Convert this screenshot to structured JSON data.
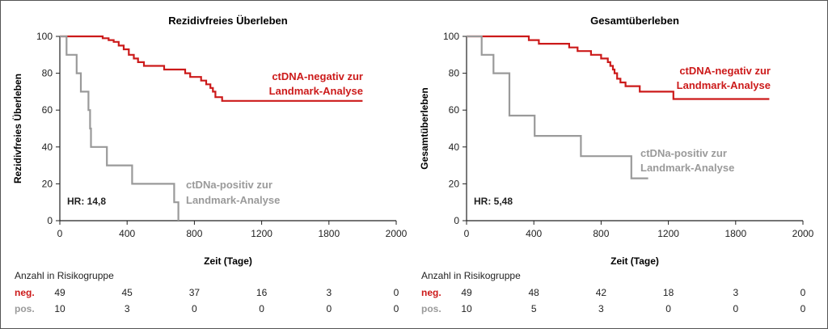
{
  "colors": {
    "negative": "#cc1a1a",
    "positive": "#9a9a9a",
    "axis": "#222222"
  },
  "chart_data": [
    {
      "type": "line",
      "title": "Rezidivfreies Überleben",
      "xlabel": "Zeit (Tage)",
      "ylabel": "Rezidivfreies Überleben",
      "xlim": [
        0,
        2000
      ],
      "ylim": [
        0,
        100
      ],
      "x_ticks": [
        "0",
        "400",
        "800",
        "1200",
        "1800",
        "2000"
      ],
      "y_ticks": [
        "0",
        "20",
        "40",
        "60",
        "80",
        "100"
      ],
      "hr_label": "HR: 14,8",
      "series": [
        {
          "name": "ctDNA-negativ zur Landmark-Analyse",
          "label_lines": [
            "ctDNA-negativ zur",
            "Landmark-Analyse"
          ],
          "color_key": "negative",
          "steps": [
            [
              0,
              100
            ],
            [
              255,
              100
            ],
            [
              255,
              99
            ],
            [
              290,
              99
            ],
            [
              290,
              98
            ],
            [
              320,
              98
            ],
            [
              320,
              97
            ],
            [
              350,
              97
            ],
            [
              350,
              95
            ],
            [
              380,
              95
            ],
            [
              380,
              93
            ],
            [
              410,
              93
            ],
            [
              410,
              90
            ],
            [
              440,
              90
            ],
            [
              440,
              88
            ],
            [
              465,
              88
            ],
            [
              465,
              86
            ],
            [
              500,
              86
            ],
            [
              500,
              84
            ],
            [
              620,
              84
            ],
            [
              620,
              82
            ],
            [
              745,
              82
            ],
            [
              745,
              80
            ],
            [
              775,
              80
            ],
            [
              775,
              78
            ],
            [
              840,
              78
            ],
            [
              840,
              76
            ],
            [
              870,
              76
            ],
            [
              870,
              74
            ],
            [
              895,
              74
            ],
            [
              895,
              72
            ],
            [
              910,
              72
            ],
            [
              910,
              70
            ],
            [
              925,
              70
            ],
            [
              925,
              67
            ],
            [
              965,
              67
            ],
            [
              965,
              65
            ],
            [
              1800,
              65
            ]
          ]
        },
        {
          "name": "ctDNa-positiv zur Landmark-Analyse",
          "label_lines": [
            "ctDNa-positiv zur",
            "Landmark-Analyse"
          ],
          "color_key": "positive",
          "steps": [
            [
              0,
              100
            ],
            [
              40,
              100
            ],
            [
              40,
              90
            ],
            [
              100,
              90
            ],
            [
              100,
              80
            ],
            [
              125,
              80
            ],
            [
              125,
              70
            ],
            [
              170,
              70
            ],
            [
              170,
              60
            ],
            [
              180,
              60
            ],
            [
              180,
              50
            ],
            [
              185,
              50
            ],
            [
              185,
              40
            ],
            [
              280,
              40
            ],
            [
              280,
              30
            ],
            [
              430,
              30
            ],
            [
              430,
              20
            ],
            [
              680,
              20
            ],
            [
              680,
              10
            ],
            [
              705,
              10
            ],
            [
              705,
              0
            ]
          ]
        }
      ],
      "risk_table": {
        "title": "Anzahl in Risikogruppe",
        "times": [
          0,
          400,
          800,
          1200,
          1600,
          2000
        ],
        "neg_label": "neg.",
        "pos_label": "pos.",
        "neg": [
          "49",
          "45",
          "37",
          "16",
          "3",
          "0"
        ],
        "pos": [
          "10",
          "3",
          "0",
          "0",
          "0",
          "0"
        ]
      }
    },
    {
      "type": "line",
      "title": "Gesamtüberleben",
      "xlabel": "Zeit (Tage)",
      "ylabel": "Gesamtüberleben",
      "xlim": [
        0,
        2000
      ],
      "ylim": [
        0,
        100
      ],
      "x_ticks": [
        "0",
        "400",
        "800",
        "1200",
        "1800",
        "2000"
      ],
      "y_ticks": [
        "0",
        "20",
        "40",
        "60",
        "80",
        "100"
      ],
      "hr_label": "HR: 5,48",
      "series": [
        {
          "name": "ctDNA-negativ zur Landmark-Analyse",
          "label_lines": [
            "ctDNA-negativ zur",
            "Landmark-Analyse"
          ],
          "color_key": "negative",
          "steps": [
            [
              0,
              100
            ],
            [
              370,
              100
            ],
            [
              370,
              98
            ],
            [
              430,
              98
            ],
            [
              430,
              96
            ],
            [
              610,
              96
            ],
            [
              610,
              94
            ],
            [
              660,
              94
            ],
            [
              660,
              92
            ],
            [
              740,
              92
            ],
            [
              740,
              90
            ],
            [
              800,
              90
            ],
            [
              800,
              88
            ],
            [
              840,
              88
            ],
            [
              840,
              86
            ],
            [
              855,
              86
            ],
            [
              855,
              84
            ],
            [
              870,
              84
            ],
            [
              870,
              82
            ],
            [
              880,
              82
            ],
            [
              880,
              80
            ],
            [
              895,
              80
            ],
            [
              895,
              77
            ],
            [
              915,
              77
            ],
            [
              915,
              75
            ],
            [
              945,
              75
            ],
            [
              945,
              73
            ],
            [
              1030,
              73
            ],
            [
              1030,
              70
            ],
            [
              1230,
              70
            ],
            [
              1230,
              66
            ],
            [
              1800,
              66
            ]
          ]
        },
        {
          "name": "ctDNa-positiv zur Landmark-Analyse",
          "label_lines": [
            "ctDNa-positiv zur",
            "Landmark-Analyse"
          ],
          "color_key": "positive",
          "steps": [
            [
              0,
              100
            ],
            [
              90,
              100
            ],
            [
              90,
              90
            ],
            [
              160,
              90
            ],
            [
              160,
              80
            ],
            [
              255,
              80
            ],
            [
              255,
              57
            ],
            [
              405,
              57
            ],
            [
              405,
              46
            ],
            [
              680,
              46
            ],
            [
              680,
              35
            ],
            [
              980,
              35
            ],
            [
              980,
              23
            ],
            [
              1080,
              23
            ]
          ]
        }
      ],
      "risk_table": {
        "title": "Anzahl in Risikogruppe",
        "times": [
          0,
          400,
          800,
          1200,
          1600,
          2000
        ],
        "neg_label": "neg.",
        "pos_label": "pos.",
        "neg": [
          "49",
          "48",
          "42",
          "18",
          "3",
          "0"
        ],
        "pos": [
          "10",
          "5",
          "3",
          "0",
          "0",
          "0"
        ]
      }
    }
  ]
}
